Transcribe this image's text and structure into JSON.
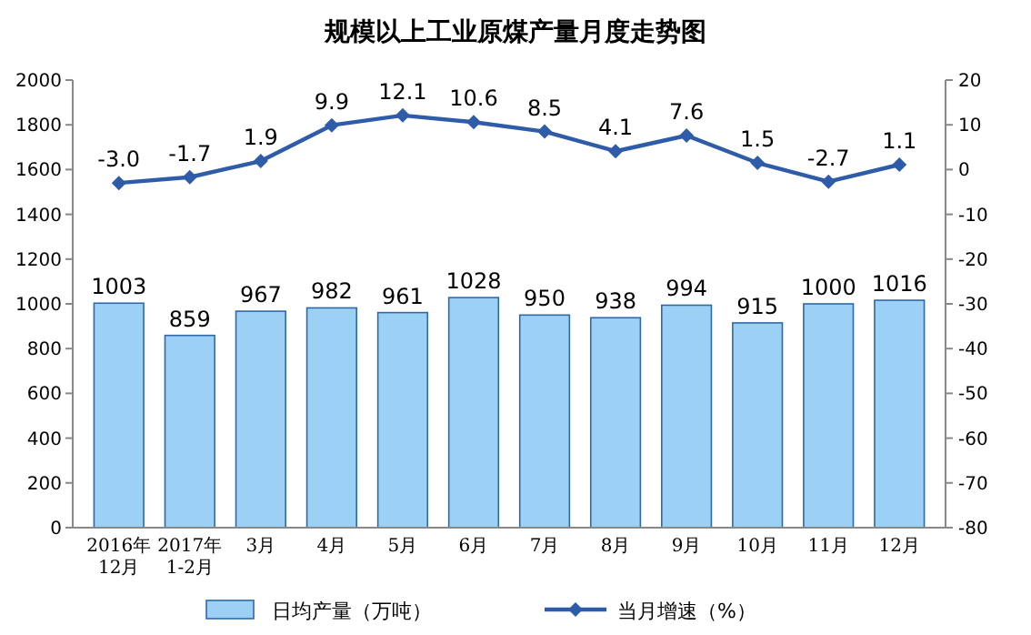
{
  "chart_data": {
    "type": "bar",
    "title": "规模以上工业原煤产量月度走势图",
    "categories": [
      "2016年\n12月",
      "2017年\n1-2月",
      "3月",
      "4月",
      "5月",
      "6月",
      "7月",
      "8月",
      "9月",
      "10月",
      "11月",
      "12月"
    ],
    "series": [
      {
        "name": "日均产量（万吨）",
        "color": "#9dd0f5",
        "values": [
          1003,
          859,
          967,
          982,
          961,
          1028,
          950,
          938,
          994,
          915,
          1000,
          1016
        ]
      },
      {
        "name": "当月增速（%）",
        "type": "line",
        "axis": "y2",
        "color": "#2e5ca8",
        "marker": "diamond",
        "values": [
          -3.0,
          -1.7,
          1.9,
          9.9,
          12.1,
          10.6,
          8.5,
          4.1,
          7.6,
          1.5,
          -2.7,
          1.1
        ],
        "value_labels": [
          "-3.0",
          "-1.7",
          "1.9",
          "9.9",
          "12.1",
          "10.6",
          "8.5",
          "4.1",
          "7.6",
          "1.5",
          "-2.7",
          "1.1"
        ]
      }
    ],
    "ylim": [
      0,
      2000
    ],
    "yticks": [
      0,
      200,
      400,
      600,
      800,
      1000,
      1200,
      1400,
      1600,
      1800,
      2000
    ],
    "y2lim": [
      -80,
      20
    ],
    "y2ticks": [
      -80,
      -70,
      -60,
      -50,
      -40,
      -30,
      -20,
      -10,
      0,
      10,
      20
    ],
    "data_labels": true,
    "legend": "bottom",
    "grid": false
  }
}
